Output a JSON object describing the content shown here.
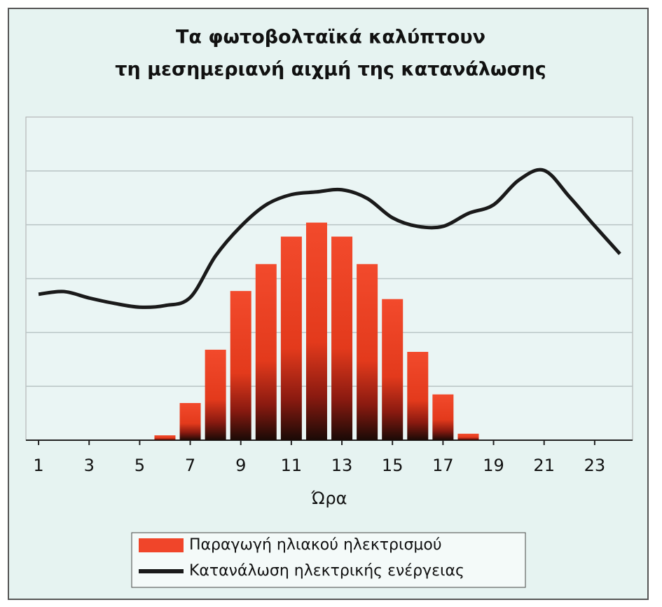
{
  "chart_data": {
    "type": "bar-line",
    "title": [
      "Τα φωτοβολταϊκά καλύπτουν",
      "τη μεσημεριανή αιχμή της κατανάλωσης"
    ],
    "x_label": "Ώρα",
    "x": [
      1,
      2,
      3,
      4,
      5,
      6,
      7,
      8,
      9,
      10,
      11,
      12,
      13,
      14,
      15,
      16,
      17,
      18,
      19,
      20,
      21,
      22,
      23,
      24
    ],
    "xlim": [
      0.5,
      24.5
    ],
    "xticks": [
      1,
      3,
      5,
      7,
      9,
      11,
      13,
      15,
      17,
      19,
      21,
      23
    ],
    "ylim": [
      0,
      6
    ],
    "gridlines": [
      1,
      2,
      3,
      4,
      5
    ],
    "series": [
      {
        "name": "Παραγωγή ηλιακού ηλεκτρισμού",
        "type": "bar",
        "color": "#f0452a",
        "values": [
          0,
          0,
          0,
          0,
          0,
          0.09,
          0.69,
          1.68,
          2.77,
          3.27,
          3.78,
          4.04,
          3.78,
          3.27,
          2.62,
          1.64,
          0.85,
          0.12,
          0,
          0,
          0,
          0,
          0,
          0
        ]
      },
      {
        "name": "Κατανάλωση ηλεκτρικής ενέργειας",
        "type": "line",
        "color": "#1a1a1a",
        "values": [
          2.71,
          2.76,
          2.64,
          2.54,
          2.47,
          2.5,
          2.65,
          3.42,
          3.97,
          4.37,
          4.56,
          4.61,
          4.65,
          4.49,
          4.13,
          3.97,
          3.97,
          4.21,
          4.37,
          4.83,
          5.01,
          4.52,
          3.98,
          3.46
        ]
      }
    ]
  }
}
